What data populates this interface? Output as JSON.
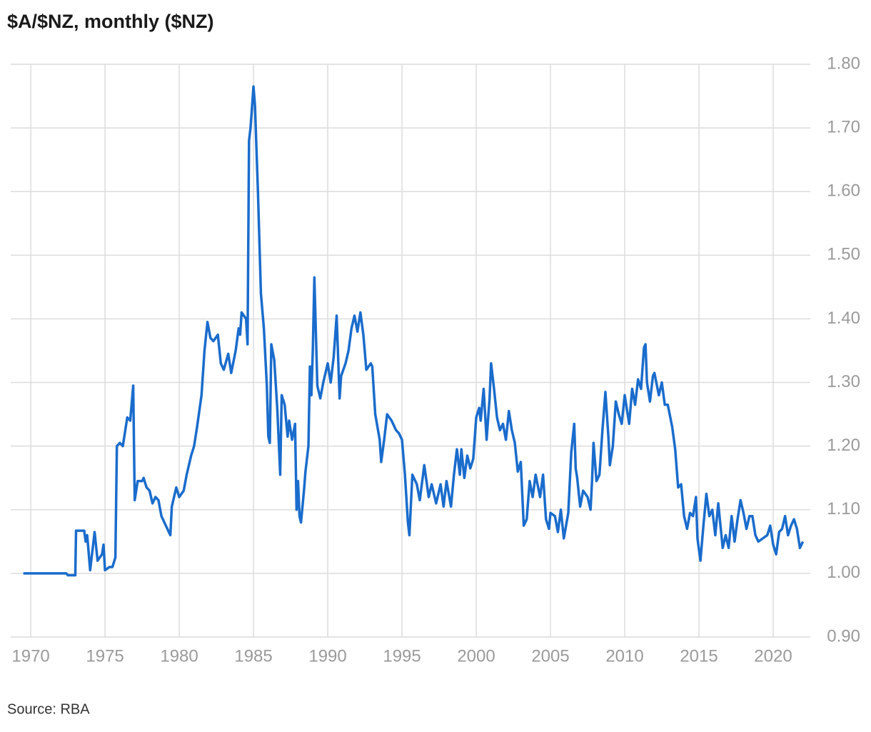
{
  "chart_data": {
    "type": "line",
    "title": "$A/$NZ, monthly ($NZ)",
    "source": "Source: RBA",
    "color": "#1a6ccc",
    "grid": true,
    "xlim": [
      1968.65,
      2022.5
    ],
    "ylim": [
      0.9,
      1.8
    ],
    "xticks": [
      1970,
      1975,
      1980,
      1985,
      1990,
      1995,
      2000,
      2005,
      2010,
      2015,
      2020
    ],
    "yticks": [
      {
        "value": 0.9,
        "label": "0.90"
      },
      {
        "value": 1.0,
        "label": "1.00"
      },
      {
        "value": 1.1,
        "label": "1.10"
      },
      {
        "value": 1.2,
        "label": "1.20"
      },
      {
        "value": 1.3,
        "label": "1.30"
      },
      {
        "value": 1.4,
        "label": "1.40"
      },
      {
        "value": 1.5,
        "label": "1.50"
      },
      {
        "value": 1.6,
        "label": "1.60"
      },
      {
        "value": 1.7,
        "label": "1.70"
      },
      {
        "value": 1.8,
        "label": "1.80"
      }
    ],
    "x": [
      1969.5,
      1972.4,
      1972.5,
      1973.0,
      1973.05,
      1973.6,
      1973.7,
      1973.8,
      1974.0,
      1974.3,
      1974.5,
      1974.8,
      1974.9,
      1975.0,
      1975.3,
      1975.5,
      1975.7,
      1975.8,
      1976.0,
      1976.2,
      1976.5,
      1976.7,
      1976.9,
      1977.0,
      1977.2,
      1977.5,
      1977.6,
      1977.8,
      1978.0,
      1978.2,
      1978.4,
      1978.6,
      1978.8,
      1979.0,
      1979.3,
      1979.4,
      1979.5,
      1979.8,
      1980.0,
      1980.3,
      1980.5,
      1980.8,
      1981.0,
      1981.2,
      1981.5,
      1981.7,
      1981.9,
      1982.1,
      1982.3,
      1982.6,
      1982.8,
      1983.0,
      1983.3,
      1983.5,
      1983.8,
      1984.0,
      1984.1,
      1984.2,
      1984.5,
      1984.6,
      1984.7,
      1984.8,
      1985.0,
      1985.1,
      1985.3,
      1985.5,
      1985.7,
      1985.9,
      1986.0,
      1986.1,
      1986.2,
      1986.4,
      1986.6,
      1986.8,
      1986.9,
      1987.1,
      1987.3,
      1987.4,
      1987.6,
      1987.8,
      1987.9,
      1988.0,
      1988.1,
      1988.2,
      1988.4,
      1988.5,
      1988.7,
      1988.8,
      1988.9,
      1989.0,
      1989.1,
      1989.3,
      1989.5,
      1989.7,
      1990.0,
      1990.2,
      1990.4,
      1990.6,
      1990.8,
      1990.9,
      1991.2,
      1991.4,
      1991.6,
      1991.8,
      1992.0,
      1992.2,
      1992.4,
      1992.6,
      1992.9,
      1993.0,
      1993.2,
      1993.5,
      1993.6,
      1993.8,
      1994.0,
      1994.3,
      1994.6,
      1994.8,
      1995.0,
      1995.2,
      1995.4,
      1995.5,
      1995.7,
      1996.0,
      1996.2,
      1996.5,
      1996.8,
      1997.0,
      1997.3,
      1997.6,
      1997.8,
      1998.0,
      1998.3,
      1998.5,
      1998.7,
      1998.9,
      1999.0,
      1999.2,
      1999.4,
      1999.6,
      1999.8,
      2000.0,
      2000.2,
      2000.3,
      2000.5,
      2000.7,
      2000.9,
      2001.0,
      2001.2,
      2001.4,
      2001.6,
      2001.8,
      2002.0,
      2002.2,
      2002.4,
      2002.6,
      2002.8,
      2003.0,
      2003.2,
      2003.4,
      2003.6,
      2003.8,
      2004.0,
      2004.3,
      2004.5,
      2004.7,
      2004.9,
      2005.0,
      2005.3,
      2005.5,
      2005.7,
      2005.9,
      2006.2,
      2006.4,
      2006.6,
      2006.7,
      2006.8,
      2007.0,
      2007.2,
      2007.5,
      2007.7,
      2007.8,
      2007.9,
      2008.1,
      2008.3,
      2008.5,
      2008.7,
      2008.9,
      2009.0,
      2009.2,
      2009.4,
      2009.6,
      2009.8,
      2010.0,
      2010.3,
      2010.5,
      2010.7,
      2010.9,
      2011.1,
      2011.3,
      2011.4,
      2011.5,
      2011.7,
      2011.9,
      2012.0,
      2012.3,
      2012.5,
      2012.7,
      2012.9,
      2013.2,
      2013.4,
      2013.6,
      2013.8,
      2014.0,
      2014.2,
      2014.4,
      2014.6,
      2014.8,
      2014.9,
      2015.1,
      2015.3,
      2015.5,
      2015.7,
      2015.9,
      2016.1,
      2016.3,
      2016.6,
      2016.8,
      2017.0,
      2017.2,
      2017.4,
      2017.6,
      2017.8,
      2018.0,
      2018.2,
      2018.4,
      2018.6,
      2018.8,
      2019.0,
      2019.3,
      2019.6,
      2019.8,
      2020.0,
      2020.2,
      2020.4,
      2020.6,
      2020.8,
      2021.0,
      2021.2,
      2021.4,
      2021.6,
      2021.8,
      2022.0
    ],
    "values": [
      1.0,
      1.0,
      0.997,
      0.997,
      1.067,
      1.067,
      1.05,
      1.06,
      1.005,
      1.065,
      1.02,
      1.03,
      1.045,
      1.005,
      1.01,
      1.01,
      1.025,
      1.2,
      1.205,
      1.2,
      1.245,
      1.24,
      1.295,
      1.115,
      1.145,
      1.145,
      1.15,
      1.135,
      1.13,
      1.11,
      1.12,
      1.115,
      1.09,
      1.08,
      1.065,
      1.06,
      1.105,
      1.135,
      1.12,
      1.13,
      1.155,
      1.185,
      1.2,
      1.23,
      1.28,
      1.35,
      1.395,
      1.37,
      1.365,
      1.375,
      1.33,
      1.32,
      1.345,
      1.315,
      1.35,
      1.385,
      1.375,
      1.41,
      1.4,
      1.36,
      1.68,
      1.7,
      1.765,
      1.735,
      1.6,
      1.44,
      1.385,
      1.295,
      1.215,
      1.205,
      1.36,
      1.335,
      1.26,
      1.155,
      1.28,
      1.265,
      1.215,
      1.24,
      1.21,
      1.235,
      1.1,
      1.145,
      1.09,
      1.08,
      1.13,
      1.16,
      1.2,
      1.325,
      1.28,
      1.355,
      1.465,
      1.295,
      1.275,
      1.3,
      1.33,
      1.3,
      1.34,
      1.405,
      1.275,
      1.31,
      1.33,
      1.35,
      1.385,
      1.405,
      1.38,
      1.41,
      1.375,
      1.32,
      1.33,
      1.325,
      1.25,
      1.21,
      1.175,
      1.21,
      1.25,
      1.24,
      1.225,
      1.22,
      1.21,
      1.155,
      1.08,
      1.06,
      1.155,
      1.14,
      1.115,
      1.17,
      1.12,
      1.14,
      1.11,
      1.14,
      1.105,
      1.145,
      1.105,
      1.155,
      1.195,
      1.155,
      1.195,
      1.15,
      1.185,
      1.165,
      1.18,
      1.245,
      1.26,
      1.24,
      1.29,
      1.21,
      1.275,
      1.33,
      1.29,
      1.245,
      1.225,
      1.235,
      1.21,
      1.255,
      1.225,
      1.205,
      1.16,
      1.175,
      1.075,
      1.085,
      1.145,
      1.12,
      1.155,
      1.12,
      1.155,
      1.085,
      1.07,
      1.095,
      1.09,
      1.065,
      1.1,
      1.055,
      1.095,
      1.19,
      1.235,
      1.165,
      1.15,
      1.105,
      1.13,
      1.12,
      1.1,
      1.145,
      1.205,
      1.145,
      1.155,
      1.225,
      1.285,
      1.215,
      1.17,
      1.2,
      1.27,
      1.25,
      1.235,
      1.28,
      1.235,
      1.29,
      1.265,
      1.305,
      1.29,
      1.355,
      1.36,
      1.3,
      1.27,
      1.31,
      1.315,
      1.28,
      1.3,
      1.265,
      1.265,
      1.23,
      1.195,
      1.135,
      1.14,
      1.09,
      1.07,
      1.095,
      1.09,
      1.12,
      1.055,
      1.02,
      1.075,
      1.125,
      1.09,
      1.1,
      1.06,
      1.11,
      1.04,
      1.06,
      1.04,
      1.09,
      1.05,
      1.085,
      1.115,
      1.095,
      1.07,
      1.09,
      1.09,
      1.06,
      1.05,
      1.055,
      1.06,
      1.075,
      1.045,
      1.03,
      1.065,
      1.07,
      1.09,
      1.06,
      1.075,
      1.085,
      1.07,
      1.04,
      1.05
    ]
  }
}
